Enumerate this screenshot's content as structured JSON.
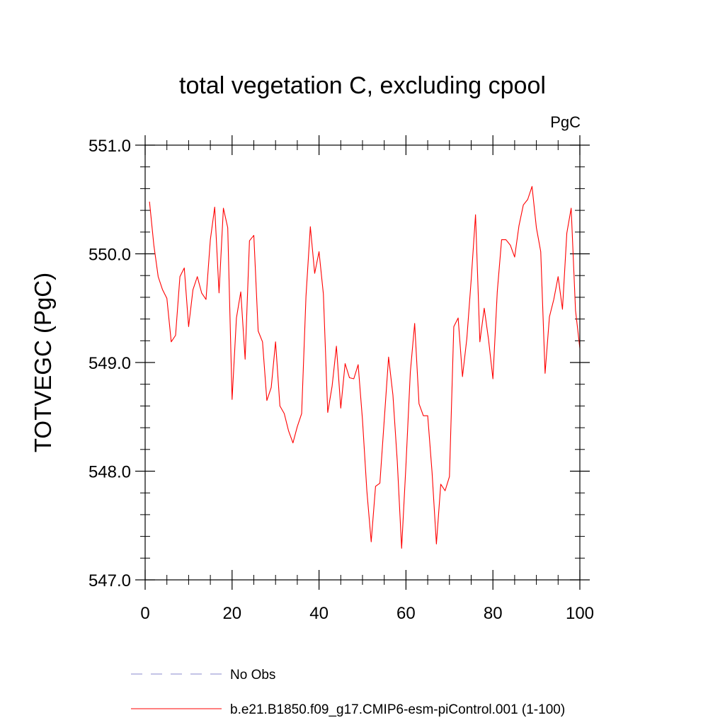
{
  "chart_data": {
    "type": "line",
    "title": "total vegetation C, excluding cpool",
    "units": "PgC",
    "xlabel": "",
    "ylabel": "TOTVEGC  (PgC)",
    "xlim": [
      0,
      100
    ],
    "ylim": [
      547.0,
      551.0
    ],
    "x_ticks": [
      {
        "value": 0,
        "label": "0"
      },
      {
        "value": 20,
        "label": "20"
      },
      {
        "value": 40,
        "label": "40"
      },
      {
        "value": 60,
        "label": "60"
      },
      {
        "value": 80,
        "label": "80"
      },
      {
        "value": 100,
        "label": "100"
      }
    ],
    "y_ticks": [
      {
        "value": 547.0,
        "label": "547.0"
      },
      {
        "value": 548.0,
        "label": "548.0"
      },
      {
        "value": 549.0,
        "label": "549.0"
      },
      {
        "value": 550.0,
        "label": "550.0"
      },
      {
        "value": 551.0,
        "label": "551.0"
      }
    ],
    "legend_position": "bottom",
    "series": [
      {
        "name": "No Obs",
        "color": "#8888cc",
        "dash": true,
        "x": [],
        "values": []
      },
      {
        "name": "b.e21.B1850.f09_g17.CMIP6-esm-piControl.001 (1-100)",
        "color": "#ff0000",
        "dash": false,
        "x": [
          1,
          2,
          3,
          4,
          5,
          6,
          7,
          8,
          9,
          10,
          11,
          12,
          13,
          14,
          15,
          16,
          17,
          18,
          19,
          20,
          21,
          22,
          23,
          24,
          25,
          26,
          27,
          28,
          29,
          30,
          31,
          32,
          33,
          34,
          35,
          36,
          37,
          38,
          39,
          40,
          41,
          42,
          43,
          44,
          45,
          46,
          47,
          48,
          49,
          50,
          51,
          52,
          53,
          54,
          55,
          56,
          57,
          58,
          59,
          60,
          61,
          62,
          63,
          64,
          65,
          66,
          67,
          68,
          69,
          70,
          71,
          72,
          73,
          74,
          75,
          76,
          77,
          78,
          79,
          80,
          81,
          82,
          83,
          84,
          85,
          86,
          87,
          88,
          89,
          90,
          91,
          92,
          93,
          94,
          95,
          96,
          97,
          98,
          99,
          100
        ],
        "values": [
          550.48,
          550.08,
          549.79,
          549.67,
          549.59,
          549.19,
          549.25,
          549.79,
          549.87,
          549.33,
          549.67,
          549.79,
          549.64,
          549.58,
          550.13,
          550.43,
          549.64,
          550.42,
          550.24,
          548.66,
          549.41,
          549.65,
          549.03,
          550.12,
          550.17,
          549.29,
          549.19,
          548.65,
          548.77,
          549.19,
          548.6,
          548.53,
          548.37,
          548.26,
          548.41,
          548.53,
          549.61,
          550.25,
          549.82,
          550.02,
          549.63,
          548.54,
          548.78,
          549.15,
          548.58,
          548.99,
          548.86,
          548.85,
          548.98,
          548.47,
          547.82,
          547.35,
          547.86,
          547.89,
          548.47,
          549.05,
          548.7,
          548.09,
          547.29,
          548.06,
          548.91,
          549.36,
          548.62,
          548.51,
          548.51,
          547.99,
          547.33,
          547.88,
          547.82,
          547.95,
          549.33,
          549.41,
          548.87,
          549.22,
          549.76,
          550.36,
          549.19,
          549.5,
          549.21,
          548.85,
          549.65,
          550.13,
          550.13,
          550.08,
          549.97,
          550.26,
          550.45,
          550.5,
          550.62,
          550.24,
          550.02,
          548.9,
          549.42,
          549.58,
          549.79,
          549.49,
          550.19,
          550.42,
          549.48,
          549.13
        ]
      }
    ]
  }
}
